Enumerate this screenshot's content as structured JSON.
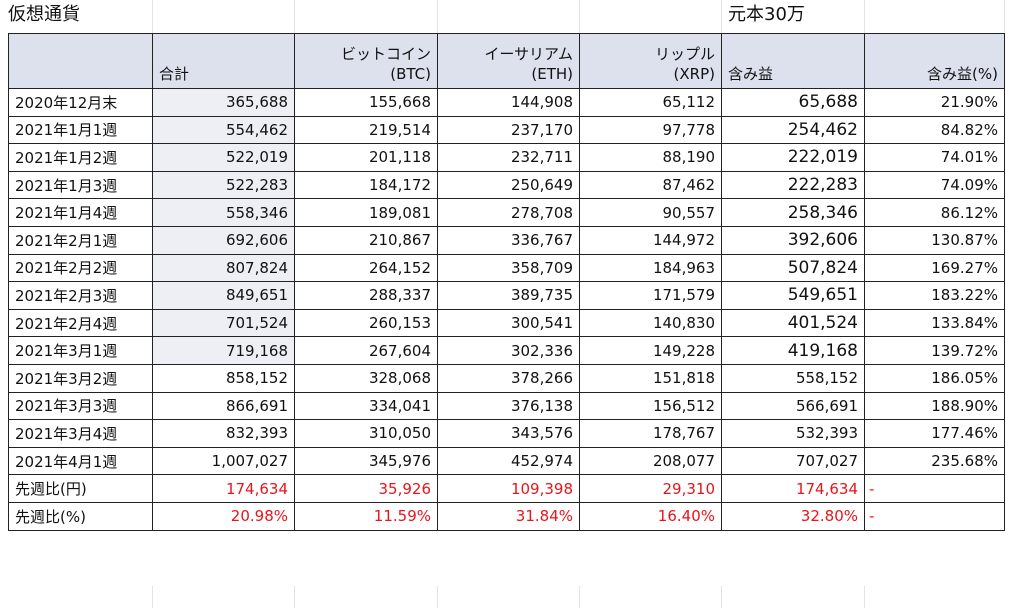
{
  "sheet": {
    "title": "仮想通貨",
    "capital": "元本30万"
  },
  "headers": {
    "label": "",
    "total": "合計",
    "btc_line1": "ビットコイン",
    "btc_line2": "(BTC)",
    "eth_line1": "イーサリアム",
    "eth_line2": "(ETH)",
    "xrp_line1": "リップル",
    "xrp_line2": "(XRP)",
    "gain": "含み益",
    "gain_pct": "含み益(%)"
  },
  "rows": [
    {
      "label": "2020年12月末",
      "total": "365,688",
      "btc": "155,668",
      "eth": "144,908",
      "xrp": "65,112",
      "gain": "65,688",
      "pct": "21.90%"
    },
    {
      "label": "2021年1月1週",
      "total": "554,462",
      "btc": "219,514",
      "eth": "237,170",
      "xrp": "97,778",
      "gain": "254,462",
      "pct": "84.82%"
    },
    {
      "label": "2021年1月2週",
      "total": "522,019",
      "btc": "201,118",
      "eth": "232,711",
      "xrp": "88,190",
      "gain": "222,019",
      "pct": "74.01%"
    },
    {
      "label": "2021年1月3週",
      "total": "522,283",
      "btc": "184,172",
      "eth": "250,649",
      "xrp": "87,462",
      "gain": "222,283",
      "pct": "74.09%"
    },
    {
      "label": "2021年1月4週",
      "total": "558,346",
      "btc": "189,081",
      "eth": "278,708",
      "xrp": "90,557",
      "gain": "258,346",
      "pct": "86.12%"
    },
    {
      "label": "2021年2月1週",
      "total": "692,606",
      "btc": "210,867",
      "eth": "336,767",
      "xrp": "144,972",
      "gain": "392,606",
      "pct": "130.87%"
    },
    {
      "label": "2021年2月2週",
      "total": "807,824",
      "btc": "264,152",
      "eth": "358,709",
      "xrp": "184,963",
      "gain": "507,824",
      "pct": "169.27%"
    },
    {
      "label": "2021年2月3週",
      "total": "849,651",
      "btc": "288,337",
      "eth": "389,735",
      "xrp": "171,579",
      "gain": "549,651",
      "pct": "183.22%"
    },
    {
      "label": "2021年2月4週",
      "total": "701,524",
      "btc": "260,153",
      "eth": "300,541",
      "xrp": "140,830",
      "gain": "401,524",
      "pct": "133.84%"
    },
    {
      "label": "2021年3月1週",
      "total": "719,168",
      "btc": "267,604",
      "eth": "302,336",
      "xrp": "149,228",
      "gain": "419,168",
      "pct": "139.72%"
    },
    {
      "label": "2021年3月2週",
      "total": "858,152",
      "btc": "328,068",
      "eth": "378,266",
      "xrp": "151,818",
      "gain": "558,152",
      "pct": "186.05%"
    },
    {
      "label": "2021年3月3週",
      "total": "866,691",
      "btc": "334,041",
      "eth": "376,138",
      "xrp": "156,512",
      "gain": "566,691",
      "pct": "188.90%"
    },
    {
      "label": "2021年3月4週",
      "total": "832,393",
      "btc": "310,050",
      "eth": "343,576",
      "xrp": "178,767",
      "gain": "532,393",
      "pct": "177.46%"
    },
    {
      "label": "2021年4月1週",
      "total": "1,007,027",
      "btc": "345,976",
      "eth": "452,974",
      "xrp": "208,077",
      "gain": "707,027",
      "pct": "235.68%"
    }
  ],
  "summary": [
    {
      "label": "先週比(円)",
      "total": "174,634",
      "btc": "35,926",
      "eth": "109,398",
      "xrp": "29,310",
      "gain": "174,634",
      "dash": "-"
    },
    {
      "label": "先週比(%)",
      "total": "20.98%",
      "btc": "11.59%",
      "eth": "31.84%",
      "xrp": "16.40%",
      "gain": "32.80%",
      "dash": "-"
    }
  ],
  "colors": {
    "header_bg": "#dde1ee",
    "shaded_bg": "#edeff5",
    "negative_red": "#e8141a"
  }
}
